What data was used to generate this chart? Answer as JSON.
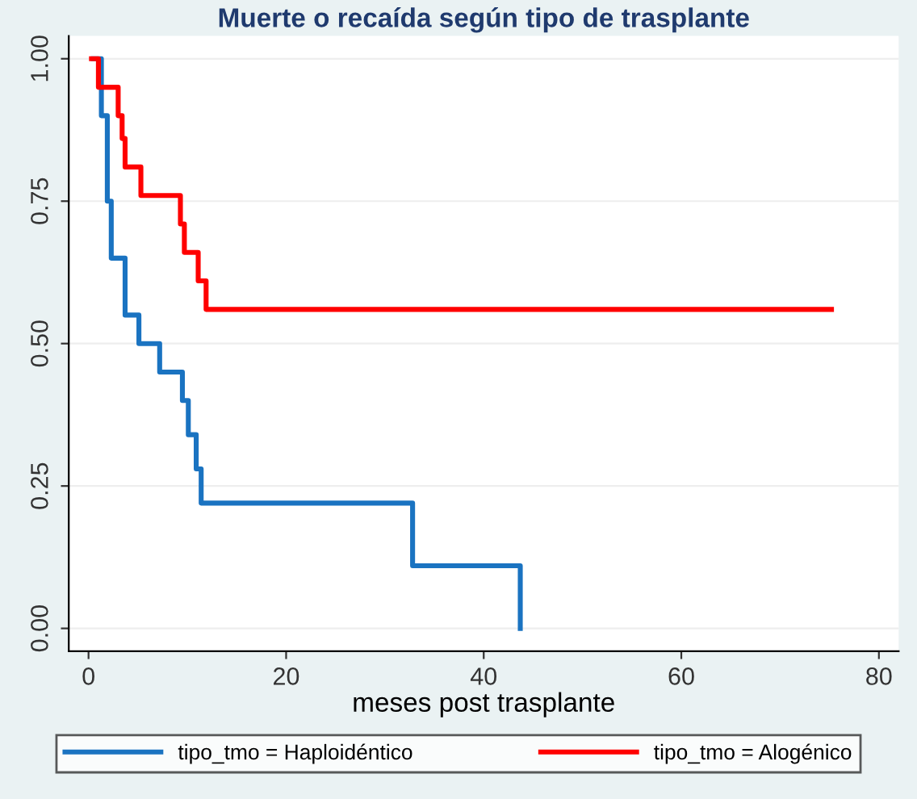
{
  "chart_data": {
    "type": "step",
    "title": "Muerte o recaída según tipo de trasplante",
    "xlabel": "meses post trasplante",
    "series": [
      {
        "name": "tipo_tmo = Haploidéntico",
        "color": "#1a73c1",
        "x": [
          0.5,
          1.3,
          1.9,
          2.3,
          3.7,
          5.1,
          7.2,
          9.5,
          10.1,
          10.9,
          11.4,
          32.8,
          43.7
        ],
        "values": [
          1.0,
          0.9,
          0.75,
          0.65,
          0.55,
          0.5,
          0.45,
          0.4,
          0.34,
          0.28,
          0.22,
          0.11,
          0.0
        ]
      },
      {
        "name": "tipo_tmo = Alogénico",
        "color": "#ff0000",
        "x": [
          0.3,
          1.0,
          3.0,
          3.4,
          3.7,
          5.3,
          9.3,
          9.7,
          11.1,
          11.9,
          75.2
        ],
        "values": [
          1.0,
          0.95,
          0.9,
          0.86,
          0.81,
          0.76,
          0.71,
          0.66,
          0.61,
          0.56,
          0.56
        ]
      }
    ],
    "xlim": [
      -2,
      82
    ],
    "ylim": [
      -0.04,
      1.04
    ],
    "xticks": [
      0,
      20,
      40,
      60,
      80
    ],
    "yticks": [
      {
        "value": 0,
        "label": "0.00"
      },
      {
        "value": 0.25,
        "label": "0.25"
      },
      {
        "value": 0.5,
        "label": "0.50"
      },
      {
        "value": 0.75,
        "label": "0.75"
      },
      {
        "value": 1,
        "label": "1.00"
      }
    ],
    "grid": "y",
    "legend": "bottom"
  }
}
